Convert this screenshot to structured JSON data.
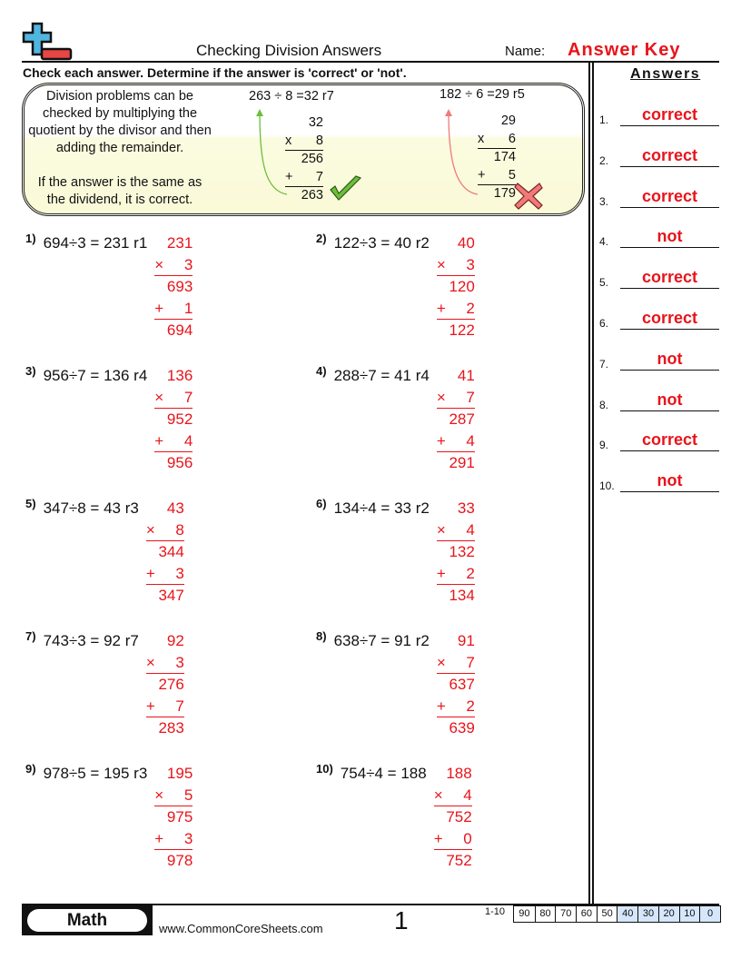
{
  "header": {
    "title": "Checking Division Answers",
    "name_label": "Name:",
    "name_value": "Answer Key"
  },
  "instructions": "Check each answer. Determine if the answer is 'correct' or 'not'.",
  "example_box": {
    "text1": "Division problems can be checked by multiplying the quotient by the divisor and then adding the remainder.",
    "text2": "If the answer is the same as the dividend, it is correct.",
    "examples": [
      {
        "equation": "263 ÷ 8 =32 r7",
        "quotient": "32",
        "mult_sign": "x",
        "divisor": "8",
        "product": "256",
        "add_sign": "+",
        "remainder": "7",
        "result": "263",
        "mark": "check-icon",
        "color": "#6cbf3b"
      },
      {
        "equation": "182 ÷ 6 =29 r5",
        "quotient": "29",
        "mult_sign": "x",
        "divisor": "6",
        "product": "174",
        "add_sign": "+",
        "remainder": "5",
        "result": "179",
        "mark": "x-icon",
        "color": "#f07a7a"
      }
    ]
  },
  "problems": [
    {
      "num": "1)",
      "eq": "694÷3 = 231 r1",
      "q": "231",
      "d": "3",
      "p": "693",
      "r": "1",
      "t": "694"
    },
    {
      "num": "2)",
      "eq": "122÷3 = 40 r2",
      "q": "40",
      "d": "3",
      "p": "120",
      "r": "2",
      "t": "122"
    },
    {
      "num": "3)",
      "eq": "956÷7 = 136 r4",
      "q": "136",
      "d": "7",
      "p": "952",
      "r": "4",
      "t": "956"
    },
    {
      "num": "4)",
      "eq": "288÷7 = 41 r4",
      "q": "41",
      "d": "7",
      "p": "287",
      "r": "4",
      "t": "291"
    },
    {
      "num": "5)",
      "eq": "347÷8 = 43 r3",
      "q": "43",
      "d": "8",
      "p": "344",
      "r": "3",
      "t": "347"
    },
    {
      "num": "6)",
      "eq": "134÷4 = 33 r2",
      "q": "33",
      "d": "4",
      "p": "132",
      "r": "2",
      "t": "134"
    },
    {
      "num": "7)",
      "eq": "743÷3 = 92 r7",
      "q": "92",
      "d": "3",
      "p": "276",
      "r": "7",
      "t": "283"
    },
    {
      "num": "8)",
      "eq": "638÷7 = 91 r2",
      "q": "91",
      "d": "7",
      "p": "637",
      "r": "2",
      "t": "639"
    },
    {
      "num": "9)",
      "eq": "978÷5 = 195 r3",
      "q": "195",
      "d": "5",
      "p": "975",
      "r": "3",
      "t": "978"
    },
    {
      "num": "10)",
      "eq": "754÷4 = 188",
      "q": "188",
      "d": "4",
      "p": "752",
      "r": "0",
      "t": "752"
    }
  ],
  "signs": {
    "mult": "×",
    "add": "+"
  },
  "answers": {
    "heading": "Answers",
    "items": [
      {
        "num": "1.",
        "value": "correct"
      },
      {
        "num": "2.",
        "value": "correct"
      },
      {
        "num": "3.",
        "value": "correct"
      },
      {
        "num": "4.",
        "value": "not"
      },
      {
        "num": "5.",
        "value": "correct"
      },
      {
        "num": "6.",
        "value": "correct"
      },
      {
        "num": "7.",
        "value": "not"
      },
      {
        "num": "8.",
        "value": "not"
      },
      {
        "num": "9.",
        "value": "correct"
      },
      {
        "num": "10.",
        "value": "not"
      }
    ]
  },
  "footer": {
    "subject": "Math",
    "site": "www.CommonCoreSheets.com",
    "page": "1",
    "score_label": "1-10",
    "scores": [
      "90",
      "80",
      "70",
      "60",
      "50",
      "40",
      "30",
      "20",
      "10",
      "0"
    ]
  },
  "colors": {
    "answer_red": "#e8141b",
    "score_highlight": "#d6e6fb",
    "logo_blue": "#4fb6e0",
    "logo_red": "#e84545"
  }
}
